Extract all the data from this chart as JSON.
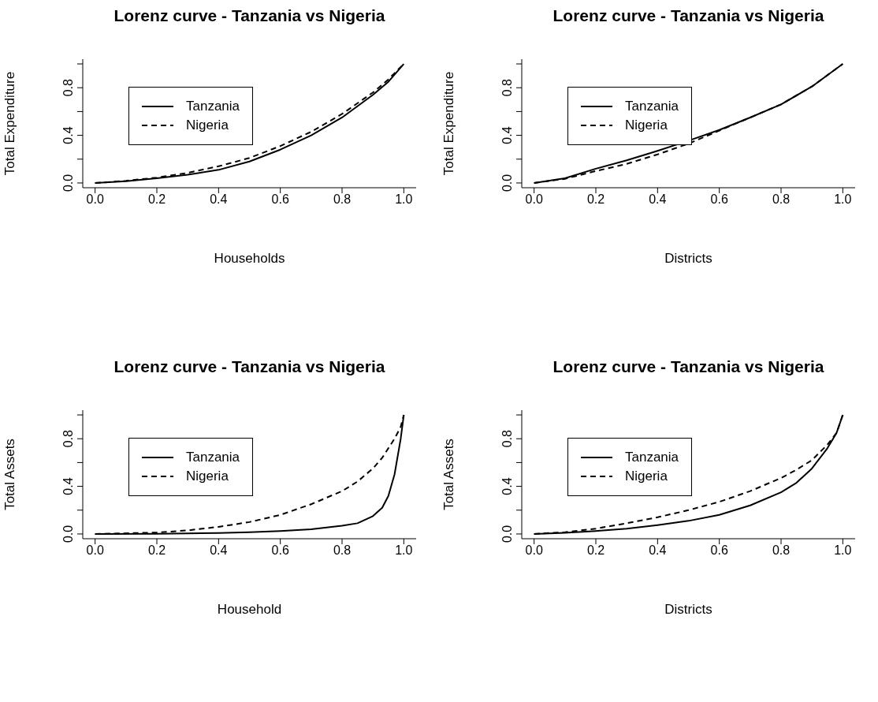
{
  "chart_data": [
    {
      "type": "line",
      "title": "Lorenz curve - Tanzania vs Nigeria",
      "xlabel": "Households",
      "ylabel": "Total Expenditure",
      "legend": "top left",
      "xlim": [
        -0.04,
        1.04
      ],
      "ylim": [
        -0.04,
        1.04
      ],
      "xticks": [
        {
          "value": 0,
          "label": "0.0"
        },
        {
          "value": 0.2,
          "label": "0.2"
        },
        {
          "value": 0.4,
          "label": "0.4"
        },
        {
          "value": 0.6,
          "label": "0.6"
        },
        {
          "value": 0.8,
          "label": "0.8"
        },
        {
          "value": 1,
          "label": "1.0"
        }
      ],
      "yticks": [
        {
          "value": 0,
          "label": "0.0"
        },
        {
          "value": 0.2,
          "label": null
        },
        {
          "value": 0.4,
          "label": "0.4"
        },
        {
          "value": 0.6,
          "label": null
        },
        {
          "value": 0.8,
          "label": "0.8"
        },
        {
          "value": 1,
          "label": null
        }
      ],
      "x": [
        0,
        0.1,
        0.2,
        0.3,
        0.4,
        0.5,
        0.6,
        0.7,
        0.8,
        0.9,
        0.95,
        1
      ],
      "series": [
        {
          "name": "Tanzania",
          "color": "#000000",
          "line_style": "solid",
          "values": [
            0,
            0.015,
            0.04,
            0.07,
            0.11,
            0.18,
            0.28,
            0.4,
            0.55,
            0.74,
            0.85,
            1
          ]
        },
        {
          "name": "Nigeria",
          "color": "#000000",
          "line_style": "dashed",
          "values": [
            0,
            0.018,
            0.045,
            0.085,
            0.14,
            0.21,
            0.31,
            0.43,
            0.58,
            0.76,
            0.87,
            1
          ]
        }
      ]
    },
    {
      "type": "line",
      "title": "Lorenz curve - Tanzania vs Nigeria",
      "xlabel": "Districts",
      "ylabel": "Total Expenditure",
      "legend": "top left",
      "xlim": [
        -0.04,
        1.04
      ],
      "ylim": [
        -0.04,
        1.04
      ],
      "xticks": [
        {
          "value": 0,
          "label": "0.0"
        },
        {
          "value": 0.2,
          "label": "0.2"
        },
        {
          "value": 0.4,
          "label": "0.4"
        },
        {
          "value": 0.6,
          "label": "0.6"
        },
        {
          "value": 0.8,
          "label": "0.8"
        },
        {
          "value": 1,
          "label": "1.0"
        }
      ],
      "yticks": [
        {
          "value": 0,
          "label": "0.0"
        },
        {
          "value": 0.2,
          "label": null
        },
        {
          "value": 0.4,
          "label": "0.4"
        },
        {
          "value": 0.6,
          "label": null
        },
        {
          "value": 0.8,
          "label": "0.8"
        },
        {
          "value": 1,
          "label": null
        }
      ],
      "x": [
        0,
        0.1,
        0.2,
        0.3,
        0.4,
        0.5,
        0.6,
        0.7,
        0.8,
        0.9,
        1
      ],
      "series": [
        {
          "name": "Tanzania",
          "color": "#000000",
          "line_style": "solid",
          "values": [
            0,
            0.04,
            0.12,
            0.19,
            0.27,
            0.355,
            0.445,
            0.55,
            0.66,
            0.81,
            1
          ]
        },
        {
          "name": "Nigeria",
          "color": "#000000",
          "line_style": "dashed",
          "values": [
            0,
            0.035,
            0.1,
            0.16,
            0.24,
            0.33,
            0.44,
            0.55,
            0.66,
            0.81,
            1
          ]
        }
      ]
    },
    {
      "type": "line",
      "title": "Lorenz curve - Tanzania vs Nigeria",
      "xlabel": "Household",
      "ylabel": "Total Assets",
      "legend": "top left",
      "xlim": [
        -0.04,
        1.04
      ],
      "ylim": [
        -0.04,
        1.04
      ],
      "xticks": [
        {
          "value": 0,
          "label": "0.0"
        },
        {
          "value": 0.2,
          "label": "0.2"
        },
        {
          "value": 0.4,
          "label": "0.4"
        },
        {
          "value": 0.6,
          "label": "0.6"
        },
        {
          "value": 0.8,
          "label": "0.8"
        },
        {
          "value": 1,
          "label": "1.0"
        }
      ],
      "yticks": [
        {
          "value": 0,
          "label": "0.0"
        },
        {
          "value": 0.2,
          "label": null
        },
        {
          "value": 0.4,
          "label": "0.4"
        },
        {
          "value": 0.6,
          "label": null
        },
        {
          "value": 0.8,
          "label": "0.8"
        },
        {
          "value": 1,
          "label": null
        }
      ],
      "x": [
        0,
        0.2,
        0.3,
        0.4,
        0.5,
        0.6,
        0.7,
        0.8,
        0.85,
        0.9,
        0.93,
        0.95,
        0.97,
        0.98,
        0.99,
        1
      ],
      "series": [
        {
          "name": "Tanzania",
          "color": "#000000",
          "line_style": "solid",
          "values": [
            0,
            0.002,
            0.005,
            0.008,
            0.015,
            0.025,
            0.04,
            0.07,
            0.09,
            0.15,
            0.22,
            0.32,
            0.5,
            0.65,
            0.8,
            1
          ]
        },
        {
          "name": "Nigeria",
          "color": "#000000",
          "line_style": "dashed",
          "values": [
            0,
            0.012,
            0.03,
            0.06,
            0.1,
            0.16,
            0.25,
            0.36,
            0.44,
            0.55,
            0.64,
            0.72,
            0.8,
            0.85,
            0.9,
            1
          ]
        }
      ]
    },
    {
      "type": "line",
      "title": "Lorenz curve - Tanzania vs Nigeria",
      "xlabel": "Districts",
      "ylabel": "Total Assets",
      "legend": "top left",
      "xlim": [
        -0.04,
        1.04
      ],
      "ylim": [
        -0.04,
        1.04
      ],
      "xticks": [
        {
          "value": 0,
          "label": "0.0"
        },
        {
          "value": 0.2,
          "label": "0.2"
        },
        {
          "value": 0.4,
          "label": "0.4"
        },
        {
          "value": 0.6,
          "label": "0.6"
        },
        {
          "value": 0.8,
          "label": "0.8"
        },
        {
          "value": 1,
          "label": "1.0"
        }
      ],
      "yticks": [
        {
          "value": 0,
          "label": "0.0"
        },
        {
          "value": 0.2,
          "label": null
        },
        {
          "value": 0.4,
          "label": "0.4"
        },
        {
          "value": 0.6,
          "label": null
        },
        {
          "value": 0.8,
          "label": "0.8"
        },
        {
          "value": 1,
          "label": null
        }
      ],
      "x": [
        0,
        0.1,
        0.2,
        0.3,
        0.4,
        0.5,
        0.6,
        0.7,
        0.8,
        0.85,
        0.9,
        0.95,
        0.98,
        1
      ],
      "series": [
        {
          "name": "Tanzania",
          "color": "#000000",
          "line_style": "solid",
          "values": [
            0,
            0.01,
            0.025,
            0.045,
            0.075,
            0.11,
            0.16,
            0.24,
            0.35,
            0.43,
            0.55,
            0.72,
            0.85,
            1
          ]
        },
        {
          "name": "Nigeria",
          "color": "#000000",
          "line_style": "dashed",
          "values": [
            0,
            0.015,
            0.045,
            0.09,
            0.14,
            0.2,
            0.27,
            0.36,
            0.47,
            0.54,
            0.62,
            0.75,
            0.85,
            1
          ]
        }
      ]
    }
  ]
}
